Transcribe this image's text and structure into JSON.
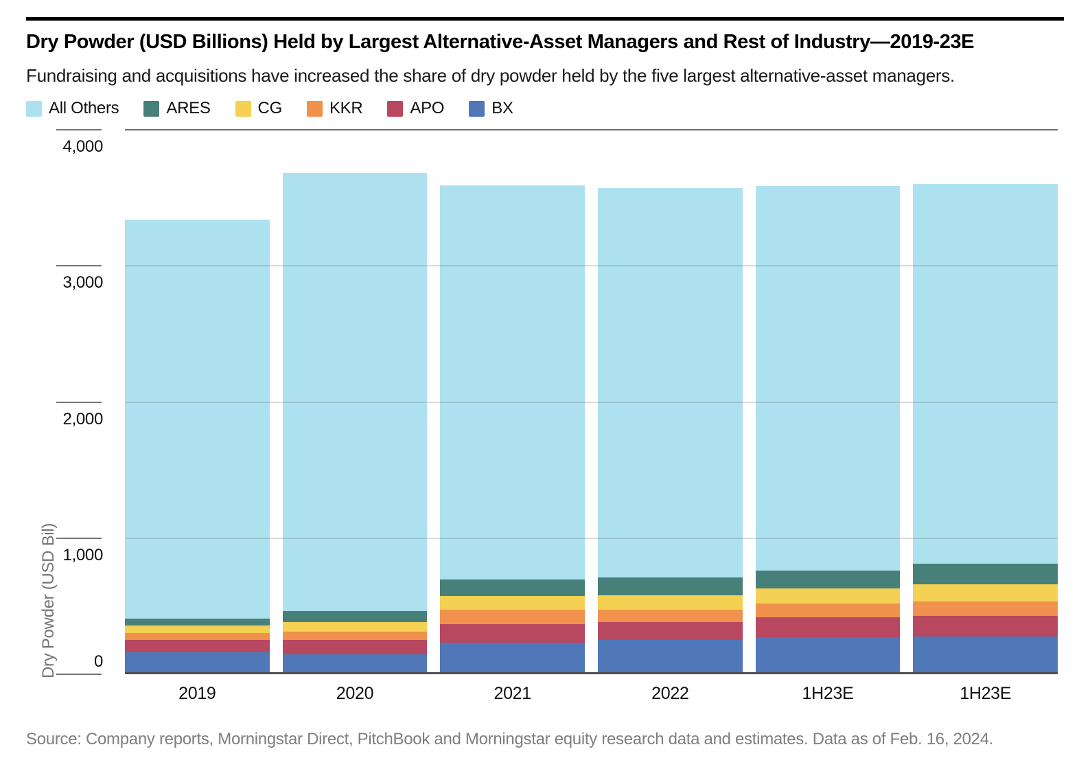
{
  "header": {
    "title": "Dry Powder (USD Billions) Held by Largest Alternative-Asset Managers and Rest of Industry—2019-23E",
    "subtitle": "Fundraising and acquisitions have increased the share of dry powder held by the five largest alternative-asset managers."
  },
  "legend": {
    "items": [
      {
        "label": "All Others",
        "color": "#AEE1F0"
      },
      {
        "label": "ARES",
        "color": "#478078"
      },
      {
        "label": "CG",
        "color": "#F4D053"
      },
      {
        "label": "KKR",
        "color": "#F0924E"
      },
      {
        "label": "APO",
        "color": "#B84760"
      },
      {
        "label": "BX",
        "color": "#5077B8"
      }
    ]
  },
  "chart_data": {
    "type": "bar",
    "stacked": true,
    "title": "Dry Powder (USD Billions) Held by Largest Alternative-Asset Managers and Rest of Industry—2019-23E",
    "subtitle": "Fundraising and acquisitions have increased the share of dry powder held by the five largest alternative-asset managers.",
    "categories": [
      "2019",
      "2020",
      "2021",
      "2022",
      "1H23E",
      "1H23E"
    ],
    "series": [
      {
        "name": "BX",
        "color": "#5077B8",
        "values": [
          160,
          145,
          230,
          250,
          270,
          275
        ]
      },
      {
        "name": "APO",
        "color": "#B84760",
        "values": [
          90,
          105,
          140,
          135,
          150,
          155
        ]
      },
      {
        "name": "KKR",
        "color": "#F0924E",
        "values": [
          55,
          65,
          105,
          90,
          100,
          105
        ]
      },
      {
        "name": "CG",
        "color": "#F4D053",
        "values": [
          55,
          70,
          100,
          105,
          110,
          125
        ]
      },
      {
        "name": "ARES",
        "color": "#478078",
        "values": [
          50,
          80,
          120,
          130,
          130,
          150
        ]
      },
      {
        "name": "All Others",
        "color": "#AEE1F0",
        "values": [
          2930,
          3215,
          2895,
          2860,
          2825,
          2790
        ]
      }
    ],
    "totals": [
      3340,
      3680,
      3590,
      3570,
      3585,
      3600
    ],
    "xlabel": "",
    "ylabel": "Dry Powder (USD Bil)",
    "ylim": [
      0,
      4000
    ],
    "yticks": [
      {
        "value": 4000,
        "label": "4,000"
      },
      {
        "value": 3000,
        "label": "3,000"
      },
      {
        "value": 2000,
        "label": "2,000"
      },
      {
        "value": 1000,
        "label": "1,000"
      },
      {
        "value": 0,
        "label": "0"
      }
    ],
    "grid": "horizontal",
    "legend_position": "top-left"
  },
  "footer": {
    "source": "Source: Company reports, Morningstar Direct, PitchBook and Morningstar equity research data and estimates. Data as of Feb. 16, 2024."
  }
}
